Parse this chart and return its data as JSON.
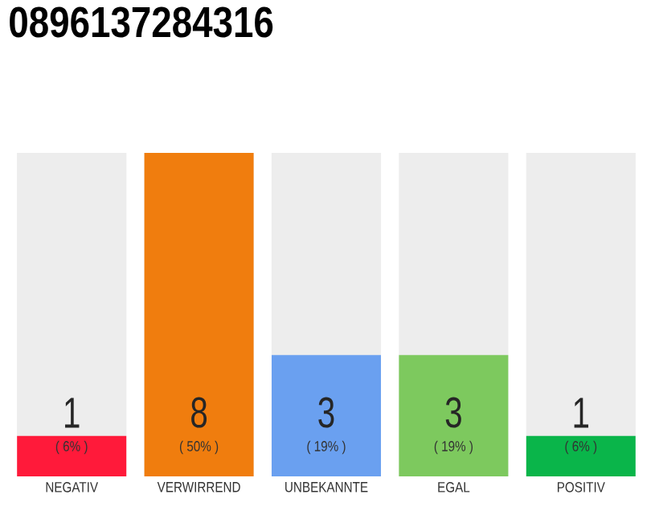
{
  "chart_data": {
    "type": "bar",
    "title": "0896137284316",
    "categories": [
      "NEGATIV",
      "VERWIRREND",
      "UNBEKANNTE",
      "EGAL",
      "POSITIV"
    ],
    "values": [
      1,
      8,
      3,
      3,
      1
    ],
    "colors": [
      "#ff1a3a",
      "#f07d0e",
      "#6aa0f0",
      "#7dc95e",
      "#0ab54a"
    ],
    "ylim": [
      0,
      8
    ],
    "data_labels": true,
    "annotations": [
      "( 6% )",
      "( 50% )",
      "( 19% )",
      "( 19% )",
      "( 6% )"
    ],
    "tick_labels": "x"
  }
}
